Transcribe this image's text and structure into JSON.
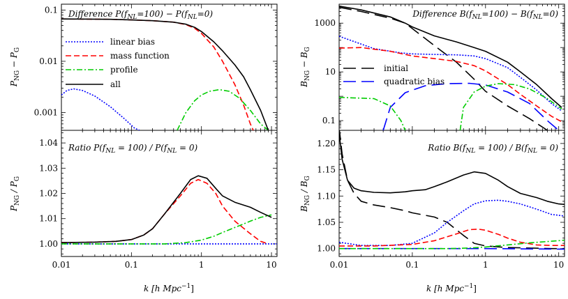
{
  "chart_data": [
    {
      "id": "power-difference",
      "type": "line",
      "title": "Difference P(f_NL=100) − P(f_NL=0)",
      "xlabel": "",
      "ylabel": "P_NG − P_G",
      "xscale": "log",
      "yscale": "log",
      "xlim": [
        0.01,
        12
      ],
      "ylim": [
        0.00045,
        0.13
      ],
      "xticks": [
        {
          "v": 0.01,
          "label": "0.01"
        },
        {
          "v": 0.1,
          "label": "0.1"
        },
        {
          "v": 1,
          "label": "1"
        },
        {
          "v": 10,
          "label": "10"
        }
      ],
      "yticks": [
        {
          "v": 0.001,
          "label": "0.001"
        },
        {
          "v": 0.01,
          "label": "0.01"
        },
        {
          "v": 0.1,
          "label": "0.1"
        }
      ],
      "legend_position": "upper-left",
      "series": [
        {
          "name": "linear bias",
          "color": "#0000ff",
          "dash": "2,2",
          "x": [
            0.01,
            0.012,
            0.015,
            0.02,
            0.03,
            0.05,
            0.08,
            0.11,
            0.13
          ],
          "y": [
            0.0022,
            0.0027,
            0.0029,
            0.0027,
            0.0021,
            0.0013,
            0.00075,
            0.0005,
            0.00045
          ]
        },
        {
          "name": "mass function",
          "color": "#ff0000",
          "dash": "8,4",
          "x": [
            0.01,
            0.05,
            0.1,
            0.2,
            0.4,
            0.6,
            0.8,
            1,
            1.5,
            2,
            3,
            4,
            5,
            5.5
          ],
          "y": [
            0.067,
            0.066,
            0.064,
            0.062,
            0.058,
            0.052,
            0.044,
            0.035,
            0.019,
            0.01,
            0.0035,
            0.0014,
            0.0006,
            0.00045
          ]
        },
        {
          "name": "profile",
          "color": "#00cc00",
          "dash": "8,3,2,3",
          "x": [
            0.45,
            0.6,
            0.8,
            1,
            1.3,
            1.8,
            2.5,
            3.5,
            5,
            7,
            9
          ],
          "y": [
            0.00045,
            0.001,
            0.0017,
            0.0022,
            0.0026,
            0.0028,
            0.0026,
            0.0019,
            0.0011,
            0.0006,
            0.00045
          ]
        },
        {
          "name": "all",
          "color": "#000000",
          "dash": "",
          "x": [
            0.01,
            0.05,
            0.1,
            0.2,
            0.4,
            0.6,
            0.8,
            1,
            1.5,
            2,
            3,
            4,
            5,
            7,
            9
          ],
          "y": [
            0.067,
            0.066,
            0.064,
            0.062,
            0.058,
            0.053,
            0.046,
            0.038,
            0.024,
            0.016,
            0.0085,
            0.005,
            0.0028,
            0.0011,
            0.00045
          ]
        }
      ]
    },
    {
      "id": "power-ratio",
      "type": "line",
      "title": "Ratio P(f_NL = 100) / P(f_NL = 0)",
      "xlabel": "k [h Mpc^-1]",
      "ylabel": "P_NG / P_G",
      "xscale": "log",
      "yscale": "linear",
      "xlim": [
        0.01,
        12
      ],
      "ylim": [
        0.995,
        1.045
      ],
      "xticks": [
        {
          "v": 0.01,
          "label": "0.01"
        },
        {
          "v": 0.1,
          "label": "0.1"
        },
        {
          "v": 1,
          "label": "1"
        },
        {
          "v": 10,
          "label": "10"
        }
      ],
      "yticks": [
        {
          "v": 1.0,
          "label": "1.00"
        },
        {
          "v": 1.01,
          "label": "1.01"
        },
        {
          "v": 1.02,
          "label": "1.02"
        },
        {
          "v": 1.03,
          "label": "1.03"
        },
        {
          "v": 1.04,
          "label": "1.04"
        }
      ],
      "series": [
        {
          "name": "linear bias",
          "color": "#0000ff",
          "dash": "2,2",
          "x": [
            0.01,
            0.1,
            1,
            10,
            12
          ],
          "y": [
            1.0,
            1.0,
            1.0,
            1.0,
            1.0
          ]
        },
        {
          "name": "mass function",
          "color": "#ff0000",
          "dash": "8,4",
          "x": [
            0.01,
            0.03,
            0.06,
            0.1,
            0.15,
            0.2,
            0.3,
            0.5,
            0.7,
            0.9,
            1.2,
            1.6,
            2,
            3,
            5,
            7,
            9
          ],
          "y": [
            1.0005,
            1.0007,
            1.001,
            1.0017,
            1.0035,
            1.006,
            1.012,
            1.019,
            1.024,
            1.0255,
            1.024,
            1.02,
            1.015,
            1.009,
            1.004,
            1.001,
            1.0
          ]
        },
        {
          "name": "profile",
          "color": "#00cc00",
          "dash": "8,3,2,3",
          "x": [
            0.01,
            0.3,
            0.6,
            1,
            1.5,
            2,
            3,
            5,
            7,
            10
          ],
          "y": [
            1.0,
            1.0,
            1.0005,
            1.0015,
            1.003,
            1.0045,
            1.0065,
            1.009,
            1.0105,
            1.0115
          ]
        },
        {
          "name": "all",
          "color": "#000000",
          "dash": "",
          "x": [
            0.01,
            0.03,
            0.06,
            0.1,
            0.15,
            0.2,
            0.3,
            0.5,
            0.7,
            0.9,
            1.2,
            1.6,
            2,
            3,
            5,
            7,
            10
          ],
          "y": [
            1.0005,
            1.0007,
            1.001,
            1.0017,
            1.0035,
            1.006,
            1.012,
            1.02,
            1.0255,
            1.027,
            1.026,
            1.022,
            1.019,
            1.0165,
            1.0145,
            1.0125,
            1.0105
          ]
        }
      ]
    },
    {
      "id": "bispectrum-difference",
      "type": "line",
      "title": "Difference B(f_NL=100) − B(f_NL=0)",
      "xlabel": "",
      "ylabel": "B_NG − B_G",
      "xscale": "log",
      "yscale": "log",
      "xlim": [
        0.01,
        12
      ],
      "ylim": [
        0.04,
        6000
      ],
      "xticks": [
        {
          "v": 0.01,
          "label": "0.01"
        },
        {
          "v": 0.1,
          "label": "0.1"
        },
        {
          "v": 1,
          "label": "1"
        },
        {
          "v": 10,
          "label": "10"
        }
      ],
      "yticks": [
        {
          "v": 0.1,
          "label": "0.1"
        },
        {
          "v": 10,
          "label": "10"
        },
        {
          "v": 1000,
          "label": "1000"
        }
      ],
      "legend_position": "middle-left",
      "series": [
        {
          "name": "initial",
          "color": "#000000",
          "dash": "18,8",
          "x": [
            0.01,
            0.02,
            0.05,
            0.08,
            0.1,
            0.2,
            0.4,
            0.7,
            1,
            2,
            4,
            7
          ],
          "y": [
            4500,
            3000,
            1600,
            1000,
            600,
            120,
            25,
            5,
            1.6,
            0.4,
            0.12,
            0.04
          ]
        },
        {
          "name": "quadratic bias",
          "color": "#0000ff",
          "dash": "18,8",
          "x": [
            0.04,
            0.05,
            0.08,
            0.15,
            0.3,
            0.6,
            1,
            2,
            4,
            7,
            10
          ],
          "y": [
            0.04,
            0.35,
            1.4,
            2.7,
            3.3,
            3.4,
            2.9,
            1.5,
            0.5,
            0.1,
            0.04
          ]
        },
        {
          "name": "linear bias",
          "color": "#0000ff",
          "dash": "2,2",
          "x": [
            0.01,
            0.03,
            0.07,
            0.1,
            0.2,
            0.4,
            0.7,
            1,
            2,
            3,
            5,
            8,
            11
          ],
          "y": [
            290,
            90,
            60,
            55,
            52,
            50,
            45,
            35,
            15,
            6,
            1.8,
            0.5,
            0.25
          ]
        },
        {
          "name": "mass function",
          "color": "#ff0000",
          "dash": "8,4",
          "x": [
            0.01,
            0.02,
            0.05,
            0.1,
            0.2,
            0.4,
            0.7,
            1,
            2,
            3,
            5,
            8,
            11
          ],
          "y": [
            95,
            100,
            70,
            45,
            35,
            27,
            18,
            11,
            3,
            1.2,
            0.4,
            0.15,
            0.09
          ]
        },
        {
          "name": "profile",
          "color": "#00cc00",
          "dash": "8,3,2,3",
          "x": [
            0.01,
            0.03,
            0.05,
            0.07,
            0.08
          ],
          "y": [
            0.9,
            0.8,
            0.4,
            0.1,
            0.04
          ]
        },
        {
          "name": "profile",
          "color": "#00cc00",
          "dash": "8,3,2,3",
          "x": [
            0.45,
            0.5,
            0.7,
            1,
            1.5,
            2.5,
            4,
            7,
            11
          ],
          "y": [
            0.04,
            0.35,
            1.5,
            2.6,
            3.3,
            3.0,
            2.0,
            0.8,
            0.3
          ]
        },
        {
          "name": "all",
          "color": "#000000",
          "dash": "",
          "x": [
            0.01,
            0.02,
            0.05,
            0.08,
            0.1,
            0.2,
            0.4,
            0.7,
            1,
            2,
            3,
            5,
            8,
            11
          ],
          "y": [
            5000,
            3500,
            1800,
            1000,
            700,
            300,
            170,
            100,
            70,
            25,
            10,
            3,
            0.8,
            0.35
          ]
        }
      ]
    },
    {
      "id": "bispectrum-ratio",
      "type": "line",
      "title": "Ratio B(f_NL = 100) / B(f_NL = 0)",
      "xlabel": "k [h Mpc^-1]",
      "ylabel": "B_NG / B_G",
      "xscale": "log",
      "yscale": "linear",
      "xlim": [
        0.01,
        12
      ],
      "ylim": [
        0.985,
        1.225
      ],
      "xticks": [
        {
          "v": 0.01,
          "label": "0.01"
        },
        {
          "v": 0.1,
          "label": "0.1"
        },
        {
          "v": 1,
          "label": "1"
        },
        {
          "v": 10,
          "label": "10"
        }
      ],
      "yticks": [
        {
          "v": 1.0,
          "label": "1.00"
        },
        {
          "v": 1.05,
          "label": "1.05"
        },
        {
          "v": 1.1,
          "label": "1.10"
        },
        {
          "v": 1.15,
          "label": "1.15"
        },
        {
          "v": 1.2,
          "label": "1.20"
        }
      ],
      "series": [
        {
          "name": "initial",
          "color": "#000000",
          "dash": "18,8",
          "x": [
            0.01,
            0.011,
            0.013,
            0.016,
            0.02,
            0.03,
            0.05,
            0.08,
            0.1,
            0.2,
            0.3,
            0.5,
            0.7,
            1,
            2,
            4,
            8,
            12
          ],
          "y": [
            1.23,
            1.18,
            1.13,
            1.105,
            1.09,
            1.083,
            1.078,
            1.072,
            1.068,
            1.06,
            1.05,
            1.025,
            1.01,
            1.005,
            1.002,
            1.001,
            1.0,
            1.0
          ]
        },
        {
          "name": "quadratic bias",
          "color": "#0000ff",
          "dash": "18,8",
          "x": [
            0.01,
            0.1,
            1,
            10,
            12
          ],
          "y": [
            1.0,
            1.0,
            1.0,
            0.999,
            0.999
          ]
        },
        {
          "name": "linear bias",
          "color": "#0000ff",
          "dash": "2,2",
          "x": [
            0.01,
            0.02,
            0.05,
            0.1,
            0.2,
            0.3,
            0.5,
            0.7,
            1,
            1.5,
            2,
            3,
            5,
            8,
            12
          ],
          "y": [
            1.012,
            1.006,
            1.006,
            1.01,
            1.03,
            1.05,
            1.072,
            1.085,
            1.091,
            1.092,
            1.09,
            1.085,
            1.075,
            1.065,
            1.062
          ]
        },
        {
          "name": "mass function",
          "color": "#ff0000",
          "dash": "8,4",
          "x": [
            0.01,
            0.03,
            0.1,
            0.2,
            0.4,
            0.6,
            0.8,
            1,
            1.5,
            2,
            3,
            5,
            8,
            12
          ],
          "y": [
            1.005,
            1.005,
            1.008,
            1.015,
            1.028,
            1.036,
            1.037,
            1.035,
            1.027,
            1.02,
            1.012,
            1.007,
            1.006,
            1.006
          ]
        },
        {
          "name": "profile",
          "color": "#00cc00",
          "dash": "8,3,2,3",
          "x": [
            0.01,
            0.3,
            0.6,
            1,
            2,
            4,
            8,
            12
          ],
          "y": [
            1.0,
            1.0,
            1.001,
            1.003,
            1.007,
            1.011,
            1.014,
            1.016
          ]
        },
        {
          "name": "all",
          "color": "#000000",
          "dash": "",
          "x": [
            0.01,
            0.011,
            0.013,
            0.016,
            0.02,
            0.03,
            0.05,
            0.08,
            0.1,
            0.15,
            0.2,
            0.3,
            0.5,
            0.7,
            1,
            1.5,
            2,
            3,
            5,
            7,
            10,
            12
          ],
          "y": [
            1.22,
            1.17,
            1.13,
            1.115,
            1.11,
            1.107,
            1.106,
            1.108,
            1.11,
            1.112,
            1.118,
            1.127,
            1.14,
            1.146,
            1.143,
            1.13,
            1.118,
            1.105,
            1.097,
            1.09,
            1.085,
            1.084
          ]
        }
      ]
    }
  ],
  "panels_text": {
    "p_top_title_1": "Difference P(f",
    "p_top_title_sub1": "NL",
    "p_top_title_2": "=100) − P(f",
    "p_top_title_sub2": "NL",
    "p_top_title_3": "=0)",
    "p_bottom_title_1": "Ratio P(f",
    "p_bottom_title_sub1": "NL",
    "p_bottom_title_2": " = 100) / P(f",
    "p_bottom_title_sub2": "NL",
    "p_bottom_title_3": " = 0)",
    "b_top_title_1": "Difference B(f",
    "b_top_title_sub1": "NL",
    "b_top_title_2": "=100) − B(f",
    "b_top_title_sub2": "NL",
    "b_top_title_3": "=0)",
    "b_bottom_title_1": "Ratio B(f",
    "b_bottom_title_sub1": "NL",
    "b_bottom_title_2": " = 100) / B(f",
    "b_bottom_title_sub2": "NL",
    "b_bottom_title_3": " = 0)",
    "p_top_ylabel_main1": "P",
    "p_top_ylabel_sub1": "NG",
    "p_top_ylabel_main2": " − P",
    "p_top_ylabel_sub2": "G",
    "p_bottom_ylabel_main1": "P",
    "p_bottom_ylabel_sub1": "NG",
    "p_bottom_ylabel_main2": " / P",
    "p_bottom_ylabel_sub2": "G",
    "b_top_ylabel_main1": "B",
    "b_top_ylabel_sub1": "NG",
    "b_top_ylabel_main2": " − B",
    "b_top_ylabel_sub2": "G",
    "b_bottom_ylabel_main1": "B",
    "b_bottom_ylabel_sub1": "NG",
    "b_bottom_ylabel_main2": " / B",
    "b_bottom_ylabel_sub2": "G",
    "xlabel_main": "k [h Mpc",
    "xlabel_sup": "−1",
    "xlabel_end": "]",
    "legend_linear_bias": "linear bias",
    "legend_mass_function": "mass function",
    "legend_profile": "profile",
    "legend_all": "all",
    "legend_initial": "initial",
    "legend_quadratic_bias": "quadratic bias"
  }
}
